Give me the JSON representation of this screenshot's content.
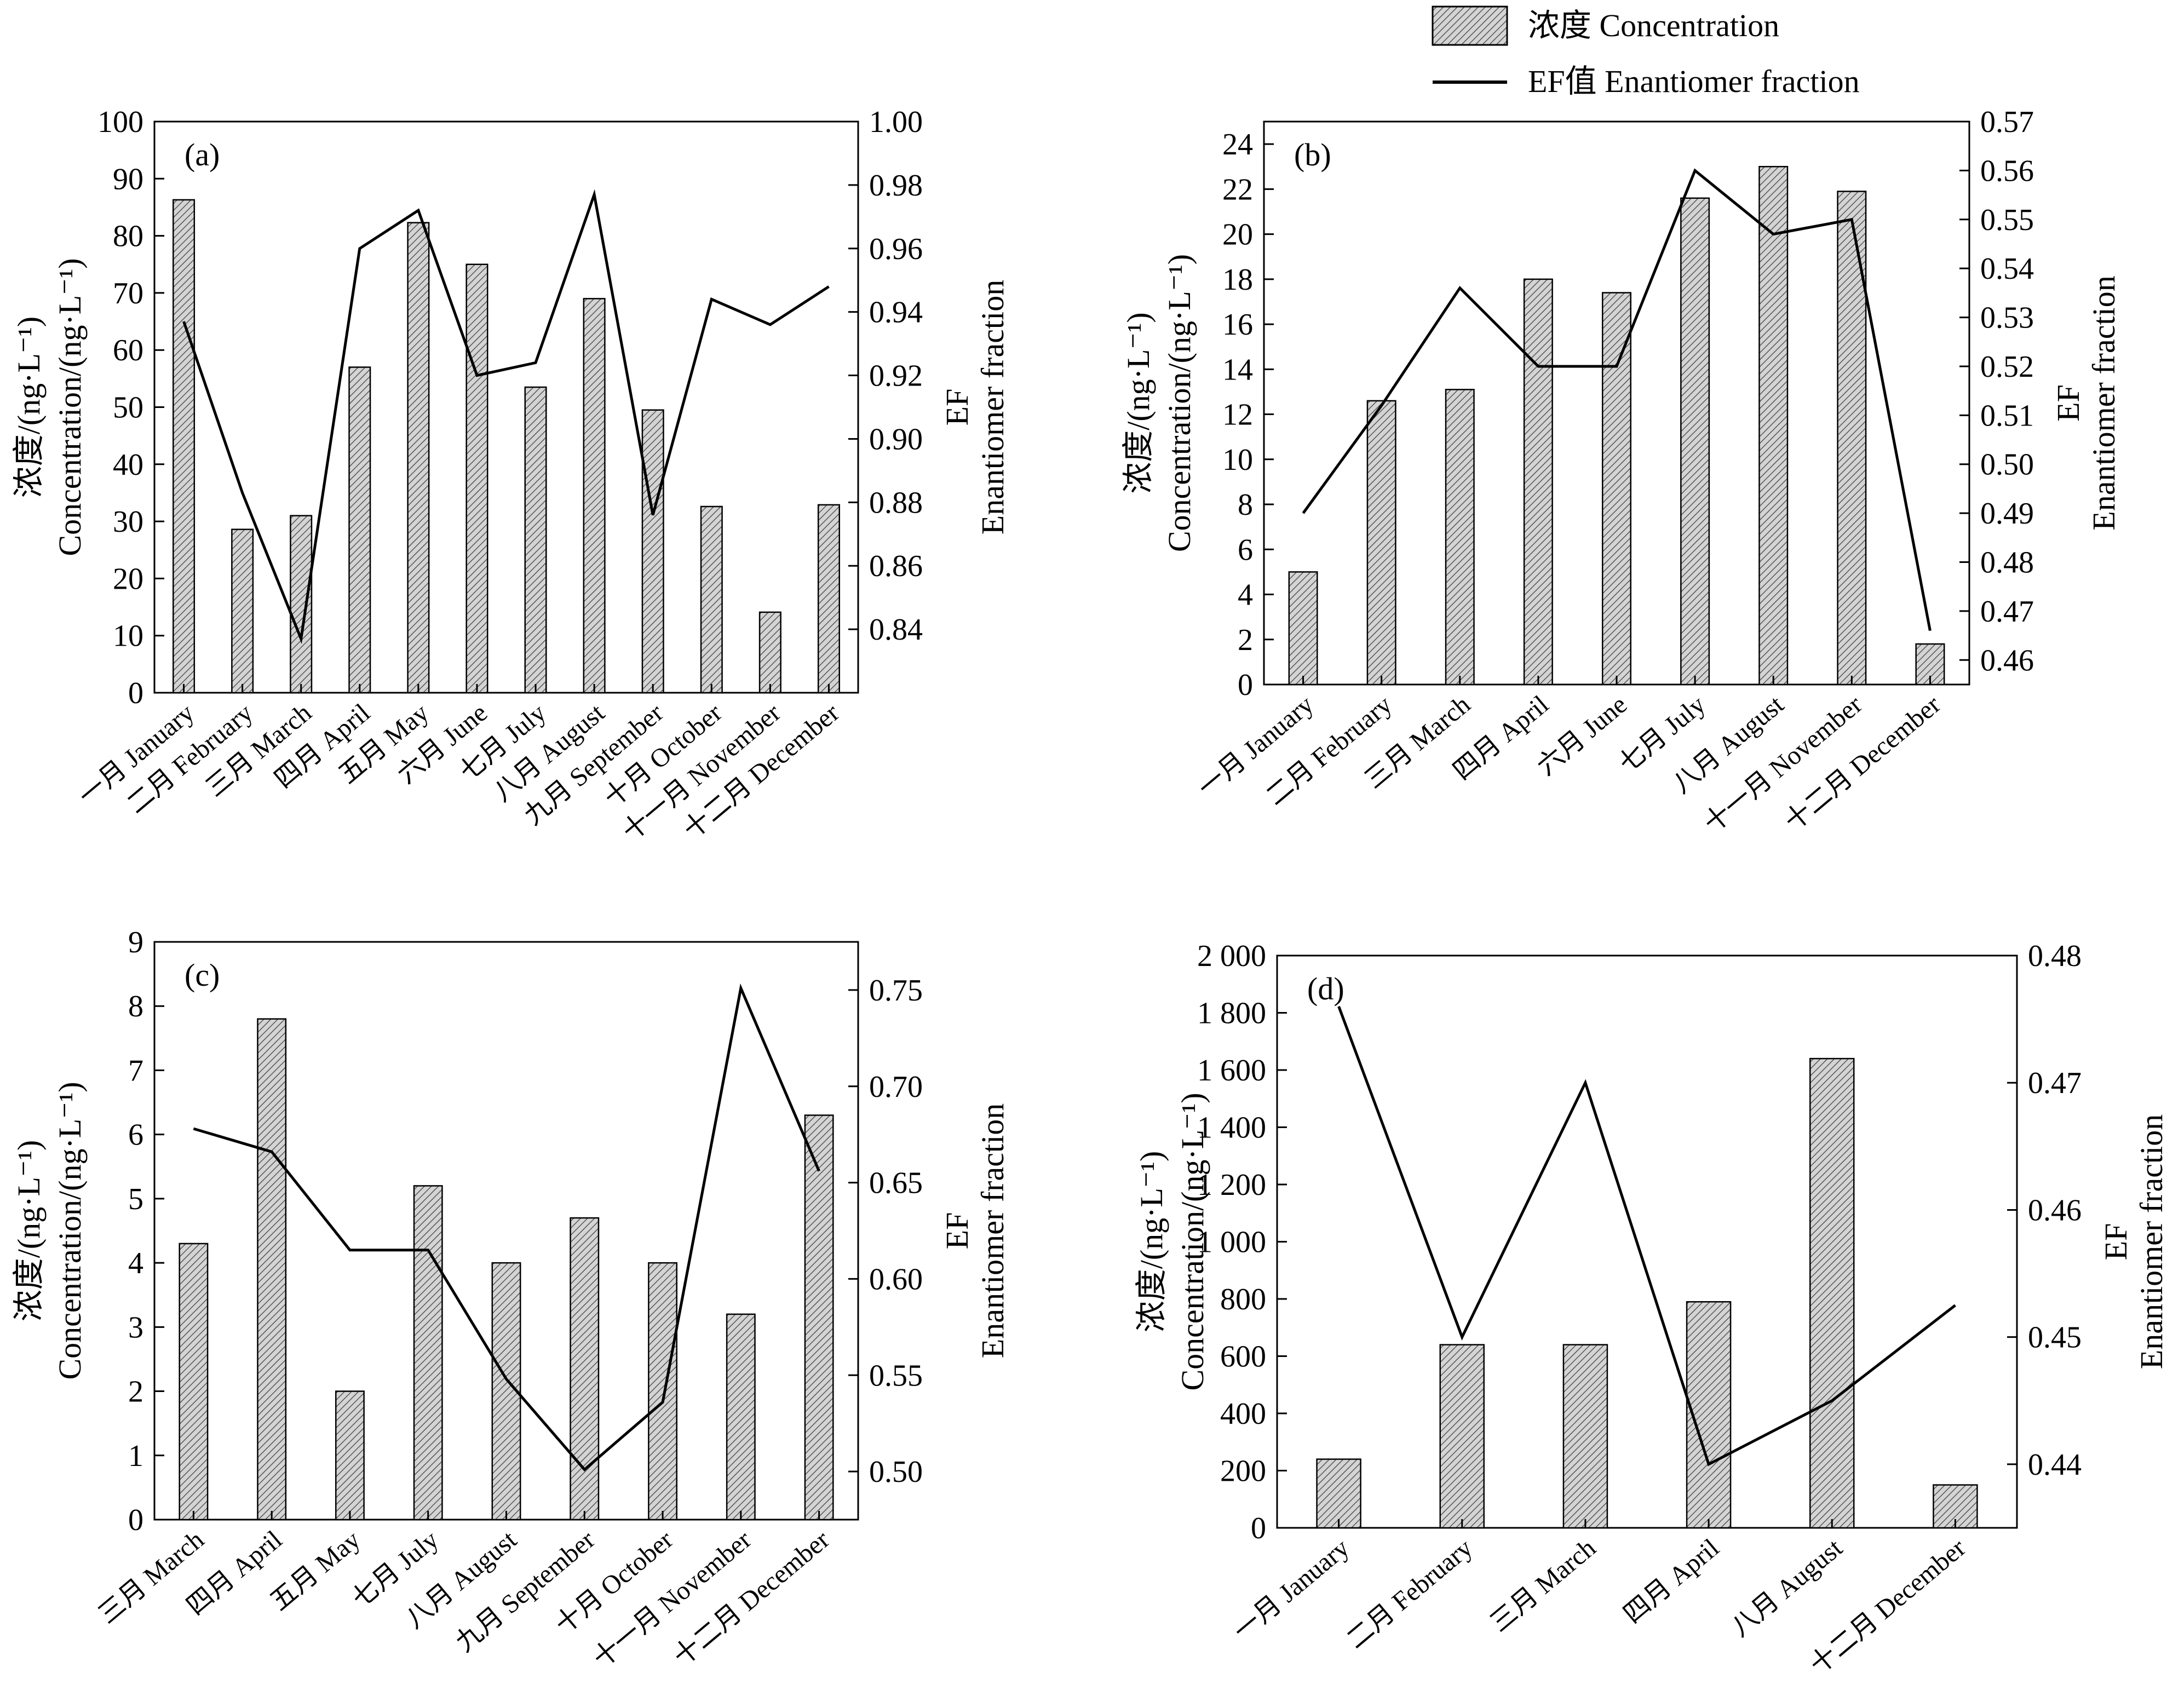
{
  "legend": {
    "bar_label": "浓度 Concentration",
    "line_label": "EF值 Enantiomer fraction"
  },
  "colors": {
    "bar_fill": "#d4d4d4",
    "bar_hatch": "#555555",
    "line": "#000000",
    "axis": "#000000"
  },
  "chart_data": [
    {
      "panel": "(a)",
      "type": "bar+line",
      "categories": [
        "一月 January",
        "二月 February",
        "三月 March",
        "四月 April",
        "五月 May",
        "六月 June",
        "七月 July",
        "八月 August",
        "九月 September",
        "十月 October",
        "十一月 November",
        "十二月 December"
      ],
      "series": [
        {
          "name": "浓度 Concentration",
          "type": "bar",
          "axis": "left",
          "values": [
            86.3,
            28.6,
            31.0,
            57.0,
            82.3,
            75.0,
            53.5,
            69.0,
            49.5,
            32.6,
            14.1,
            32.9
          ]
        },
        {
          "name": "EF值 Enantiomer fraction",
          "type": "line",
          "axis": "right",
          "values": [
            0.937,
            0.883,
            0.837,
            0.96,
            0.972,
            0.92,
            0.924,
            0.977,
            0.876,
            0.944,
            0.936,
            0.948
          ]
        }
      ],
      "ylabel_left_zh": "浓度/(ng·L⁻¹)",
      "ylabel_left_en": "Concentration/(ng·L⁻¹)",
      "ylabel_right_1": "EF",
      "ylabel_right_2": "Enantiomer fraction",
      "ylim_left": [
        0,
        100
      ],
      "yticks_left": [
        "0",
        "10",
        "20",
        "30",
        "40",
        "50",
        "60",
        "70",
        "80",
        "90",
        "100"
      ],
      "ylim_right": [
        0.82,
        1.0
      ],
      "yticks_right_values": [
        0.84,
        0.86,
        0.88,
        0.9,
        0.92,
        0.94,
        0.96,
        0.98,
        1.0
      ],
      "yticks_right": [
        "0.84",
        "0.86",
        "0.88",
        "0.90",
        "0.92",
        "0.94",
        "0.96",
        "0.98",
        "1.00"
      ]
    },
    {
      "panel": "(b)",
      "type": "bar+line",
      "categories": [
        "一月 January",
        "二月 February",
        "三月 March",
        "四月 April",
        "六月 June",
        "七月 July",
        "八月 August",
        "十一月 November",
        "十二月 December"
      ],
      "series": [
        {
          "name": "浓度 Concentration",
          "type": "bar",
          "axis": "left",
          "values": [
            5.0,
            12.6,
            13.1,
            18.0,
            17.4,
            21.6,
            23.0,
            21.9,
            1.8
          ]
        },
        {
          "name": "EF值 Enantiomer fraction",
          "type": "line",
          "axis": "right",
          "values": [
            0.49,
            0.512,
            0.536,
            0.52,
            0.52,
            0.56,
            0.547,
            0.55,
            0.466
          ]
        }
      ],
      "ylabel_left_zh": "浓度/(ng·L⁻¹)",
      "ylabel_left_en": "Concentration/(ng·L⁻¹)",
      "ylabel_right_1": "EF",
      "ylabel_right_2": "Enantiomer fraction",
      "ylim_left": [
        0,
        25
      ],
      "yticks_left_values": [
        0,
        2,
        4,
        6,
        8,
        10,
        12,
        14,
        16,
        18,
        20,
        22,
        24
      ],
      "yticks_left": [
        "0",
        "2",
        "4",
        "6",
        "8",
        "10",
        "12",
        "14",
        "16",
        "18",
        "20",
        "22",
        "24"
      ],
      "ylim_right": [
        0.455,
        0.57
      ],
      "yticks_right_values": [
        0.46,
        0.47,
        0.48,
        0.49,
        0.5,
        0.51,
        0.52,
        0.53,
        0.54,
        0.55,
        0.56,
        0.57
      ],
      "yticks_right": [
        "0.46",
        "0.47",
        "0.48",
        "0.49",
        "0.50",
        "0.51",
        "0.52",
        "0.53",
        "0.54",
        "0.55",
        "0.56",
        "0.57"
      ]
    },
    {
      "panel": "(c)",
      "type": "bar+line",
      "categories": [
        "三月 March",
        "四月 April",
        "五月 May",
        "七月 July",
        "八月 August",
        "九月 September",
        "十月 October",
        "十一月 November",
        "十二月 December"
      ],
      "series": [
        {
          "name": "浓度 Concentration",
          "type": "bar",
          "axis": "left",
          "values": [
            4.3,
            7.8,
            2.0,
            5.2,
            4.0,
            4.7,
            4.0,
            3.2,
            6.3
          ]
        },
        {
          "name": "EF值 Enantiomer fraction",
          "type": "line",
          "axis": "right",
          "values": [
            0.678,
            0.666,
            0.615,
            0.615,
            0.548,
            0.501,
            0.536,
            0.751,
            0.656
          ]
        }
      ],
      "ylabel_left_zh": "浓度/(ng·L⁻¹)",
      "ylabel_left_en": "Concentration/(ng·L⁻¹)",
      "ylabel_right_1": "EF",
      "ylabel_right_2": "Enantiomer fraction",
      "ylim_left": [
        0,
        9
      ],
      "yticks_left_values": [
        0,
        1,
        2,
        3,
        4,
        5,
        6,
        7,
        8,
        9
      ],
      "yticks_left": [
        "0",
        "1",
        "2",
        "3",
        "4",
        "5",
        "6",
        "7",
        "8",
        "9"
      ],
      "ylim_right": [
        0.475,
        0.775
      ],
      "yticks_right_values": [
        0.5,
        0.55,
        0.6,
        0.65,
        0.7,
        0.75
      ],
      "yticks_right": [
        "0.50",
        "0.55",
        "0.60",
        "0.65",
        "0.70",
        "0.75"
      ]
    },
    {
      "panel": "(d)",
      "type": "bar+line",
      "categories": [
        "一月 January",
        "二月 February",
        "三月 March",
        "四月 April",
        "八月 August",
        "十二月 December"
      ],
      "series": [
        {
          "name": "浓度 Concentration",
          "type": "bar",
          "axis": "left",
          "values": [
            240,
            640,
            640,
            790,
            1640,
            150
          ]
        },
        {
          "name": "EF值 Enantiomer fraction",
          "type": "line",
          "axis": "right",
          "values": [
            0.476,
            0.45,
            0.47,
            0.44,
            0.445,
            0.4525
          ]
        }
      ],
      "ylabel_left_zh": "浓度/(ng·L⁻¹)",
      "ylabel_left_en": "Concentration/(ng·L⁻¹)",
      "ylabel_right_1": "EF",
      "ylabel_right_2": "Enantiomer fraction",
      "ylim_left": [
        0,
        2000
      ],
      "yticks_left_values": [
        0,
        200,
        400,
        600,
        800,
        1000,
        1200,
        1400,
        1600,
        1800,
        2000
      ],
      "yticks_left": [
        "0",
        "200",
        "400",
        "600",
        "800",
        "1 000",
        "1 200",
        "1 400",
        "1 600",
        "1 800",
        "2 000"
      ],
      "ylim_right": [
        0.435,
        0.48
      ],
      "yticks_right_values": [
        0.44,
        0.45,
        0.46,
        0.47,
        0.48
      ],
      "yticks_right": [
        "0.44",
        "0.45",
        "0.46",
        "0.47",
        "0.48"
      ]
    }
  ]
}
